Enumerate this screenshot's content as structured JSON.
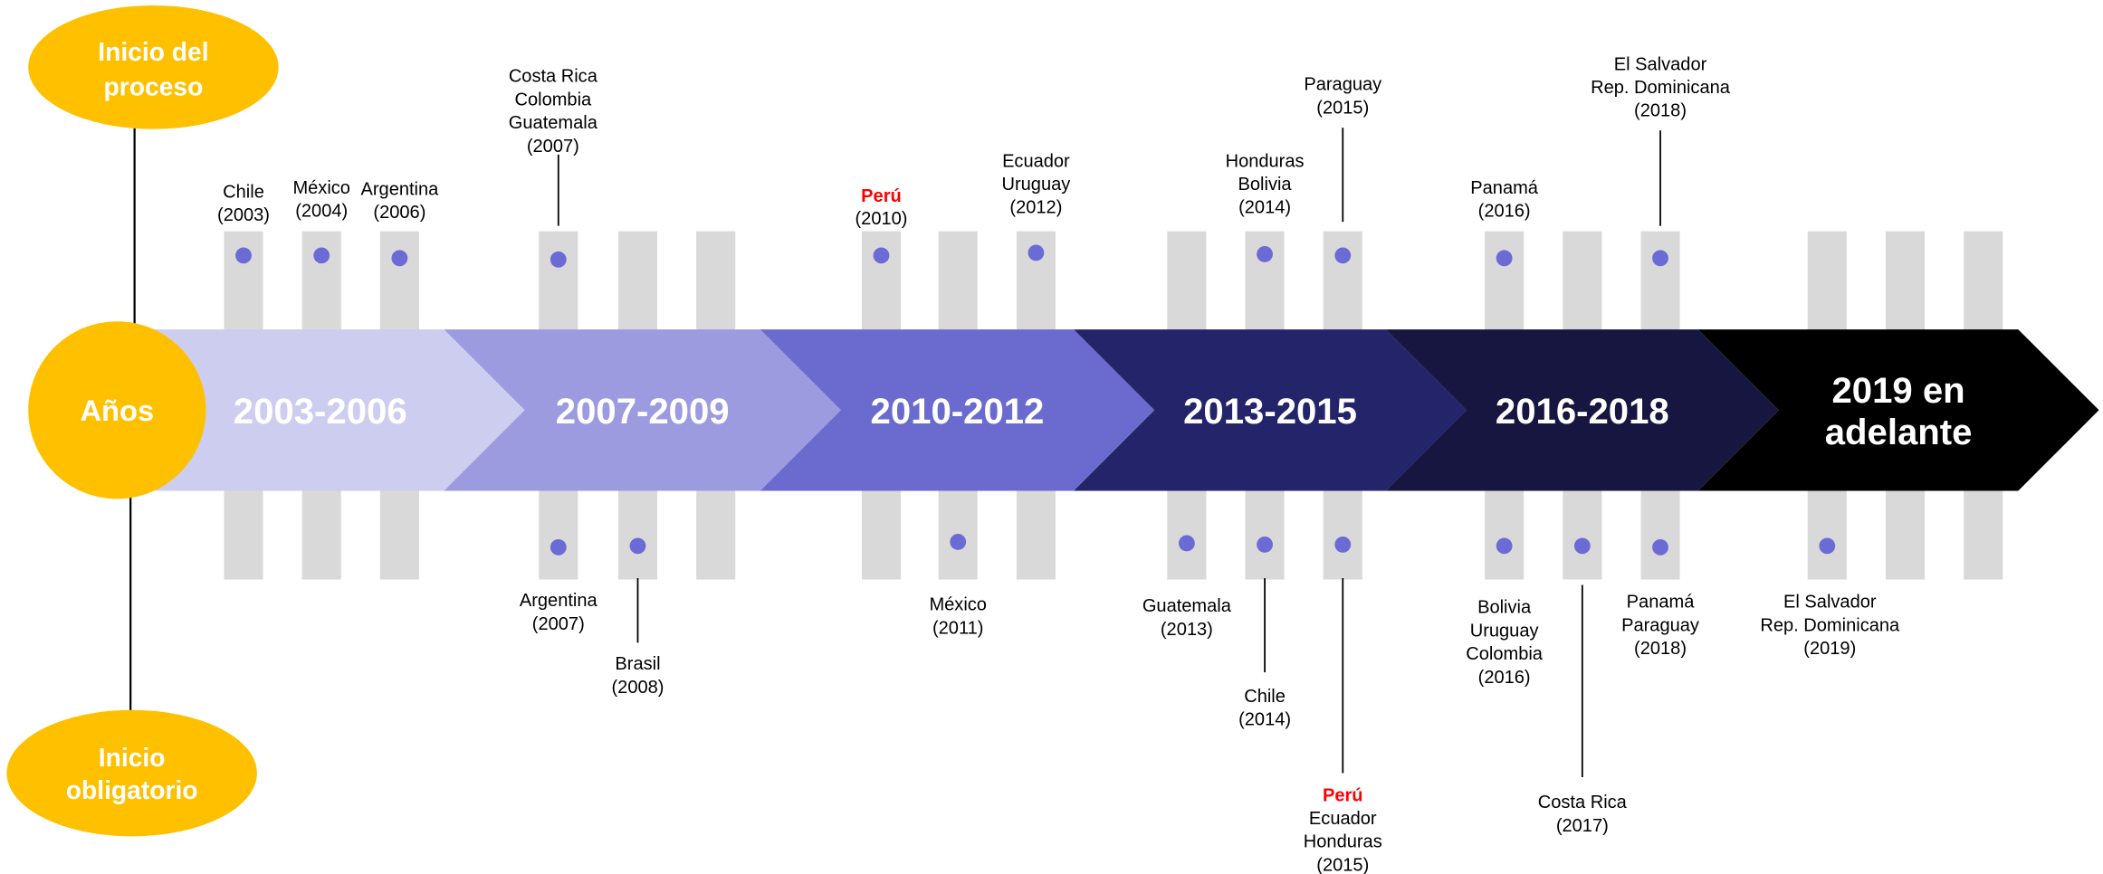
{
  "labels": {
    "start": [
      "Inicio del",
      "proceso"
    ],
    "years": "Años",
    "mandatory": [
      "Inicio",
      "obligatorio"
    ]
  },
  "periods": [
    [
      "2003-2006"
    ],
    [
      "2007-2009"
    ],
    [
      "2010-2012"
    ],
    [
      "2013-2015"
    ],
    [
      "2016-2018"
    ],
    [
      "2019 en",
      "adelante"
    ]
  ],
  "top_events": [
    {
      "lines": [
        "Chile",
        "(2003)"
      ]
    },
    {
      "lines": [
        "México",
        "(2004)"
      ]
    },
    {
      "lines": [
        "Argentina",
        "(2006)"
      ]
    },
    {
      "lines": [
        "Costa Rica",
        "Colombia",
        "Guatemala",
        "(2007)"
      ]
    },
    {
      "highlighted": "Perú",
      "lines": [
        "(2010)"
      ]
    },
    {
      "lines": [
        "Ecuador",
        "Uruguay",
        "(2012)"
      ]
    },
    {
      "lines": [
        "Honduras",
        "Bolivia",
        "(2014)"
      ]
    },
    {
      "lines": [
        "Paraguay",
        "(2015)"
      ]
    },
    {
      "lines": [
        "Panamá",
        "(2016)"
      ]
    },
    {
      "lines": [
        "El Salvador",
        "Rep. Dominicana",
        "(2018)"
      ]
    }
  ],
  "bottom_events": [
    {
      "lines": [
        "Argentina",
        "(2007)"
      ]
    },
    {
      "lines": [
        "Brasil",
        "(2008)"
      ]
    },
    {
      "lines": [
        "México",
        "(2011)"
      ]
    },
    {
      "lines": [
        "Guatemala",
        "(2013)"
      ]
    },
    {
      "lines": [
        "Chile",
        "(2014)"
      ]
    },
    {
      "highlighted": "Perú",
      "lines": [
        "Ecuador",
        "Honduras",
        "(2015)"
      ]
    },
    {
      "lines": [
        "Bolivia",
        "Uruguay",
        "Colombia",
        "(2016)"
      ]
    },
    {
      "lines": [
        "Costa Rica",
        "(2017)"
      ]
    },
    {
      "lines": [
        "Panamá",
        "Paraguay",
        "(2018)"
      ]
    },
    {
      "lines": [
        "El Salvador",
        "Rep. Dominicana",
        "(2019)"
      ]
    }
  ]
}
